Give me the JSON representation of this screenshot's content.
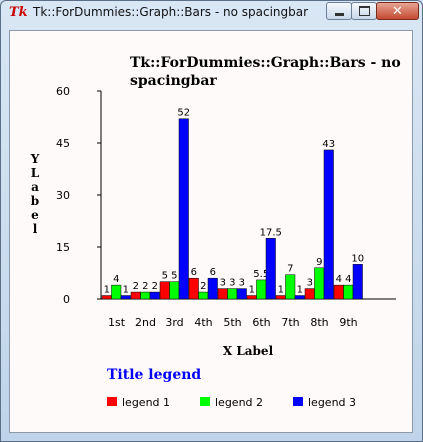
{
  "window": {
    "title": "Tk::ForDummies::Graph::Bars - no spacingbar",
    "icon": "tk-feather-icon"
  },
  "chart_data": {
    "type": "bar",
    "title": "Tk::ForDummies::Graph::Bars - no spacingbar",
    "title_lines": [
      "Tk::ForDummies::Graph::Bars - no",
      "spacingbar"
    ],
    "xlabel": "X Label",
    "ylabel": "Y Label",
    "ylim": [
      0,
      60
    ],
    "yticks": [
      0,
      15,
      30,
      45,
      60
    ],
    "categories": [
      "1st",
      "2nd",
      "3rd",
      "4th",
      "5th",
      "6th",
      "7th",
      "8th",
      "9th"
    ],
    "series": [
      {
        "name": "legend 1",
        "color": "#ff0000",
        "values": [
          1,
          2,
          5,
          6,
          3,
          1,
          1,
          3,
          4
        ]
      },
      {
        "name": "legend 2",
        "color": "#00ff00",
        "values": [
          4,
          2,
          5,
          2,
          3,
          5.5,
          7,
          9,
          4
        ]
      },
      {
        "name": "legend 3",
        "color": "#0000ff",
        "values": [
          1,
          2,
          52,
          6,
          3,
          17.5,
          1,
          43,
          10
        ]
      }
    ],
    "data_labels": [
      [
        "1",
        "2",
        "5",
        "6",
        "3",
        "1",
        "1",
        "3",
        "4"
      ],
      [
        "4",
        "2",
        "5",
        "2",
        "3",
        "5.5",
        "7",
        "9",
        "4"
      ],
      [
        "1",
        "2",
        "52",
        "6",
        "3",
        "17.5",
        "1",
        "43",
        "10"
      ]
    ],
    "legend": {
      "title": "Title legend",
      "title_color": "#0000ff",
      "placement": "bottom"
    },
    "grid": false
  }
}
